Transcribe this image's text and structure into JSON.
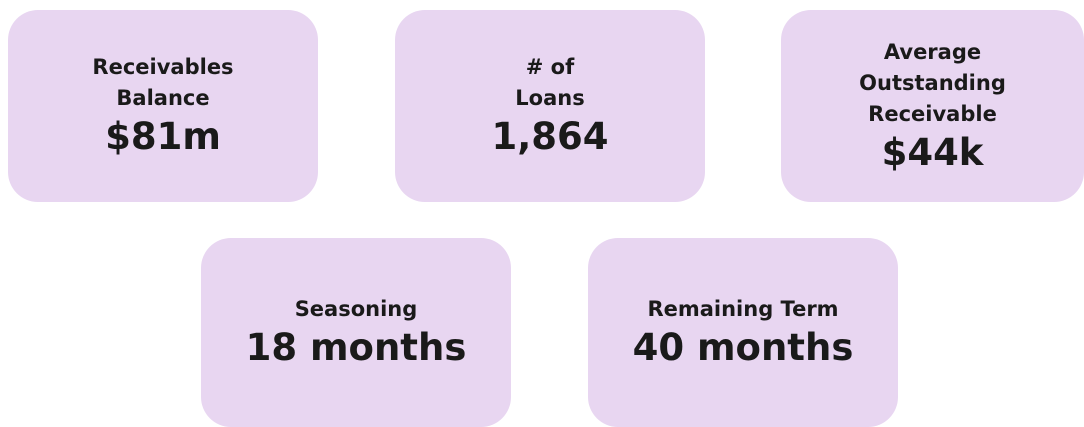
{
  "cards": [
    {
      "label_lines": [
        "Receivables",
        "Balance"
      ],
      "value": "$81m"
    },
    {
      "label_lines": [
        "# of",
        "Loans"
      ],
      "value": "1,864"
    },
    {
      "label_lines": [
        "Average",
        "Outstanding",
        "Receivable"
      ],
      "value": "$44k"
    },
    {
      "label_lines": [
        "Seasoning"
      ],
      "value": "18 months"
    },
    {
      "label_lines": [
        "Remaining Term"
      ],
      "value": "40 months"
    }
  ]
}
